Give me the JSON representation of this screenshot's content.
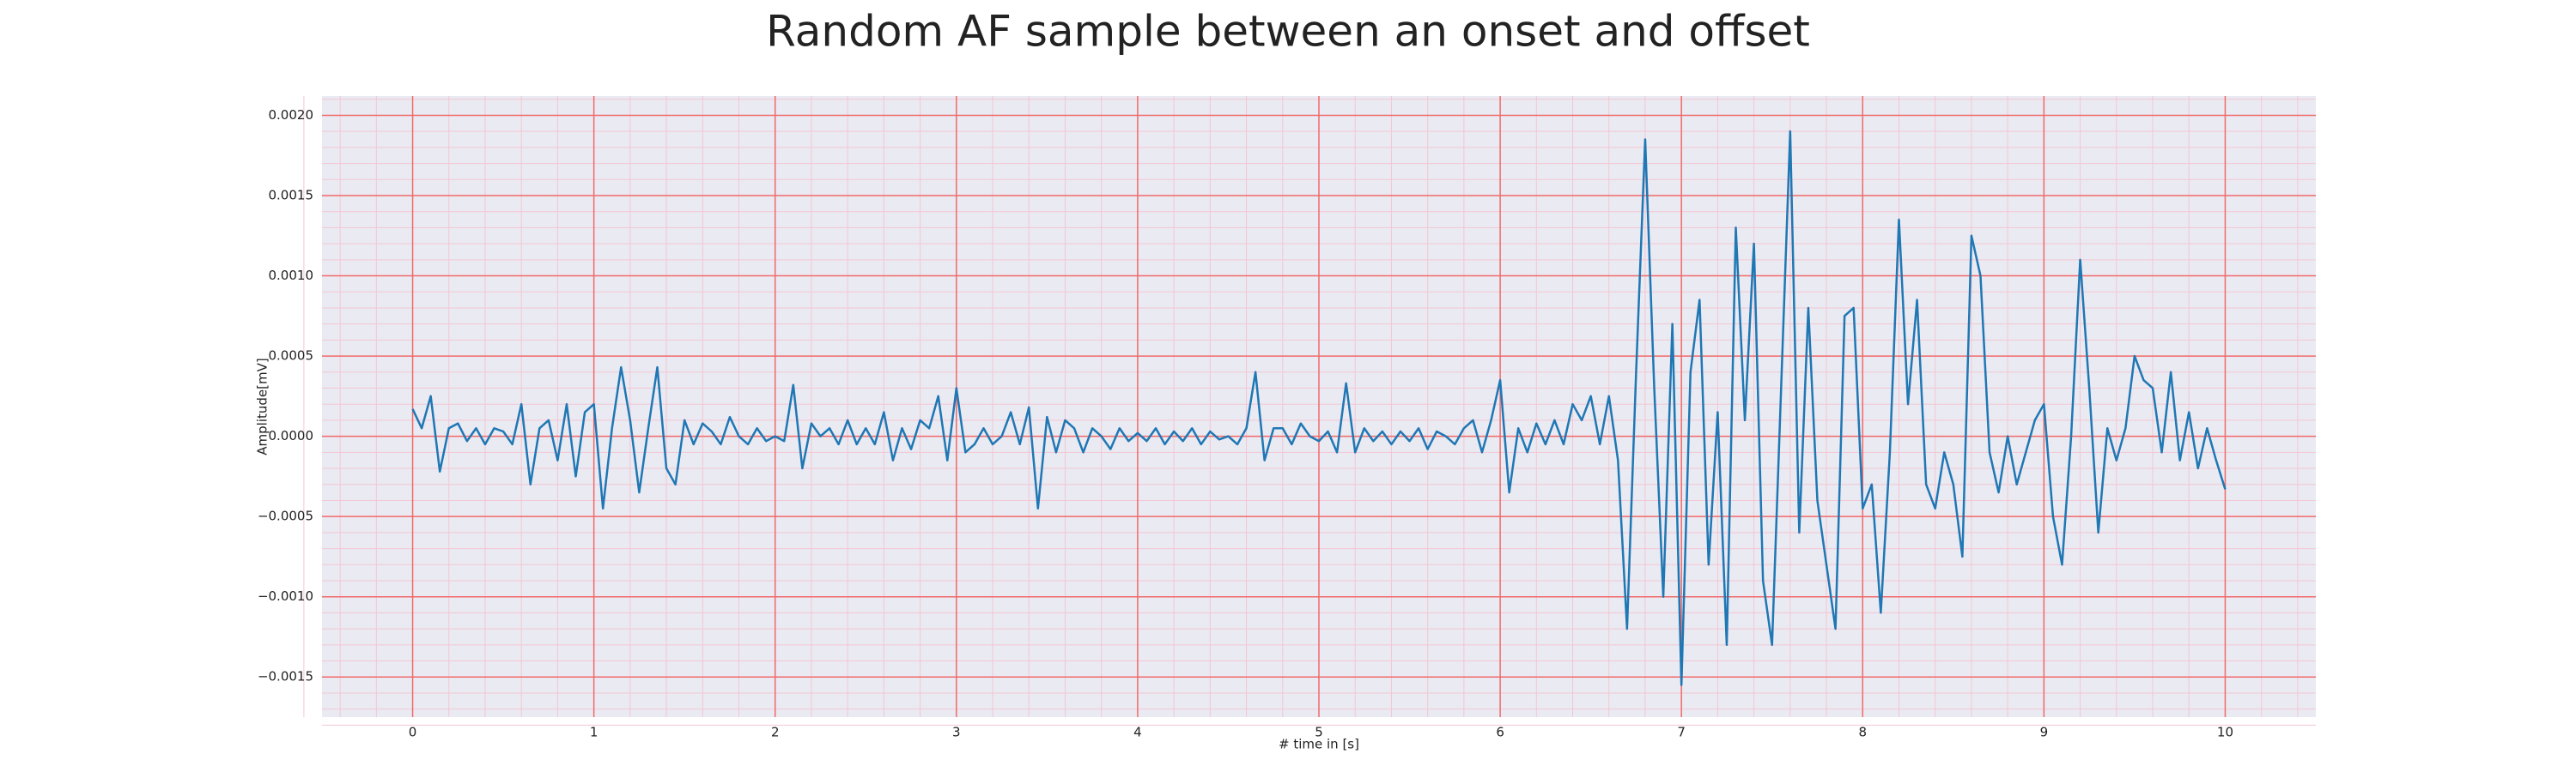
{
  "chart_data": {
    "type": "line",
    "title": "Random AF sample between an onset and offset",
    "x_label": "# time in [s]",
    "y_label": "Amplitude[mV]",
    "color": "#1f77b4",
    "grid": true,
    "minor_grid": true,
    "xlim": [
      -0.5,
      10.5
    ],
    "ylim": [
      -0.00175,
      0.00212
    ],
    "xticks": [
      0,
      1,
      2,
      3,
      4,
      5,
      6,
      7,
      8,
      9,
      10
    ],
    "yticks": [
      {
        "value": -0.0015,
        "label": "−0.0015"
      },
      {
        "value": -0.001,
        "label": "−0.0010"
      },
      {
        "value": -0.0005,
        "label": "−0.0005"
      },
      {
        "value": 0,
        "label": "0.0000"
      },
      {
        "value": 0.0005,
        "label": "0.0005"
      },
      {
        "value": 0.001,
        "label": "0.0010"
      },
      {
        "value": 0.0015,
        "label": "0.0015"
      },
      {
        "value": 0.002,
        "label": "0.0020"
      }
    ],
    "x": [
      0,
      0.05,
      0.1,
      0.15,
      0.2,
      0.25,
      0.3,
      0.35,
      0.4,
      0.45,
      0.5,
      0.55,
      0.6,
      0.65,
      0.7,
      0.75,
      0.8,
      0.85,
      0.9,
      0.95,
      1,
      1.05,
      1.1,
      1.15,
      1.2,
      1.25,
      1.3,
      1.35,
      1.4,
      1.45,
      1.5,
      1.55,
      1.6,
      1.65,
      1.7,
      1.75,
      1.8,
      1.85,
      1.9,
      1.95,
      2,
      2.05,
      2.1,
      2.15,
      2.2,
      2.25,
      2.3,
      2.35,
      2.4,
      2.45,
      2.5,
      2.55,
      2.6,
      2.65,
      2.7,
      2.75,
      2.8,
      2.85,
      2.9,
      2.95,
      3,
      3.05,
      3.1,
      3.15,
      3.2,
      3.25,
      3.3,
      3.35,
      3.4,
      3.45,
      3.5,
      3.55,
      3.6,
      3.65,
      3.7,
      3.75,
      3.8,
      3.85,
      3.9,
      3.95,
      4,
      4.05,
      4.1,
      4.15,
      4.2,
      4.25,
      4.3,
      4.35,
      4.4,
      4.45,
      4.5,
      4.55,
      4.6,
      4.65,
      4.7,
      4.75,
      4.8,
      4.85,
      4.9,
      4.95,
      5,
      5.05,
      5.1,
      5.15,
      5.2,
      5.25,
      5.3,
      5.35,
      5.4,
      5.45,
      5.5,
      5.55,
      5.6,
      5.65,
      5.7,
      5.75,
      5.8,
      5.85,
      5.9,
      5.95,
      6,
      6.05,
      6.1,
      6.15,
      6.2,
      6.25,
      6.3,
      6.35,
      6.4,
      6.45,
      6.5,
      6.55,
      6.6,
      6.65,
      6.7,
      6.75,
      6.8,
      6.85,
      6.9,
      6.95,
      7,
      7.05,
      7.1,
      7.15,
      7.2,
      7.25,
      7.3,
      7.35,
      7.4,
      7.45,
      7.5,
      7.55,
      7.6,
      7.65,
      7.7,
      7.75,
      7.8,
      7.85,
      7.9,
      7.95,
      8,
      8.05,
      8.1,
      8.15,
      8.2,
      8.25,
      8.3,
      8.35,
      8.4,
      8.45,
      8.5,
      8.55,
      8.6,
      8.65,
      8.7,
      8.75,
      8.8,
      8.85,
      8.9,
      8.95,
      9,
      9.05,
      9.1,
      9.15,
      9.2,
      9.25,
      9.3,
      9.35,
      9.4,
      9.45,
      9.5,
      9.55,
      9.6,
      9.65,
      9.7,
      9.75,
      9.8,
      9.85,
      9.9,
      9.95,
      10
    ],
    "values": [
      0.00017,
      5e-05,
      0.00025,
      -0.00022,
      5e-05,
      8e-05,
      -3e-05,
      5e-05,
      -5e-05,
      5e-05,
      3e-05,
      -5e-05,
      0.0002,
      -0.0003,
      5e-05,
      0.0001,
      -0.00015,
      0.0002,
      -0.00025,
      0.00015,
      0.0002,
      -0.00045,
      5e-05,
      0.00043,
      0.0001,
      -0.00035,
      5e-05,
      0.00043,
      -0.0002,
      -0.0003,
      0.0001,
      -5e-05,
      8e-05,
      3e-05,
      -5e-05,
      0.00012,
      0,
      -5e-05,
      5e-05,
      -3e-05,
      0,
      -3e-05,
      0.00032,
      -0.0002,
      8e-05,
      0,
      5e-05,
      -5e-05,
      0.0001,
      -5e-05,
      5e-05,
      -5e-05,
      0.00015,
      -0.00015,
      5e-05,
      -8e-05,
      0.0001,
      5e-05,
      0.00025,
      -0.00015,
      0.0003,
      -0.0001,
      -5e-05,
      5e-05,
      -5e-05,
      0,
      0.00015,
      -5e-05,
      0.00018,
      -0.00045,
      0.00012,
      -0.0001,
      0.0001,
      5e-05,
      -0.0001,
      5e-05,
      0,
      -8e-05,
      5e-05,
      -3e-05,
      2e-05,
      -3e-05,
      5e-05,
      -5e-05,
      3e-05,
      -3e-05,
      5e-05,
      -5e-05,
      3e-05,
      -2e-05,
      0,
      -5e-05,
      5e-05,
      0.0004,
      -0.00015,
      5e-05,
      5e-05,
      -5e-05,
      8e-05,
      0,
      -3e-05,
      3e-05,
      -0.0001,
      0.00033,
      -0.0001,
      5e-05,
      -3e-05,
      3e-05,
      -5e-05,
      3e-05,
      -3e-05,
      5e-05,
      -8e-05,
      3e-05,
      0,
      -5e-05,
      5e-05,
      0.0001,
      -0.0001,
      0.0001,
      0.00035,
      -0.00035,
      5e-05,
      -0.0001,
      8e-05,
      -5e-05,
      0.0001,
      -5e-05,
      0.0002,
      0.0001,
      0.00025,
      -5e-05,
      0.00025,
      -0.00015,
      -0.0012,
      0.0004,
      0.00185,
      0.0003,
      -0.001,
      0.0007,
      -0.00155,
      0.0004,
      0.00085,
      -0.0008,
      0.00015,
      -0.0013,
      0.0013,
      0.0001,
      0.0012,
      -0.0009,
      -0.0013,
      0.0003,
      0.0019,
      -0.0006,
      0.0008,
      -0.0004,
      -0.0008,
      -0.0012,
      0.00075,
      0.0008,
      -0.00045,
      -0.0003,
      -0.0011,
      -0.0001,
      0.00135,
      0.0002,
      0.00085,
      -0.0003,
      -0.00045,
      -0.0001,
      -0.0003,
      -0.00075,
      0.00125,
      0.001,
      -0.0001,
      -0.00035,
      0,
      -0.0003,
      -0.0001,
      0.0001,
      0.0002,
      -0.0005,
      -0.0008,
      0,
      0.0011,
      0.0003,
      -0.0006,
      5e-05,
      -0.00015,
      5e-05,
      0.0005,
      0.00035,
      0.0003,
      -0.0001,
      0.0004,
      -0.00015,
      0.00015,
      -0.0002,
      5e-05,
      -0.00015,
      -0.00033
    ]
  }
}
